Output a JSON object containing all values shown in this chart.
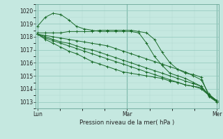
{
  "title": "Pression niveau de la mer( hPa )",
  "bg_color": "#c5e8e0",
  "grid_color_major": "#90c8bc",
  "grid_color_minor": "#b0d8d0",
  "line_color": "#1a6b2a",
  "border_color": "#5a9a8a",
  "ylim": [
    1012.5,
    1020.5
  ],
  "yticks": [
    1013,
    1014,
    1015,
    1016,
    1017,
    1018,
    1019,
    1020
  ],
  "xtick_labels": [
    "Lun",
    "Mar",
    "Mer"
  ],
  "xtick_pos": [
    0,
    1,
    2
  ],
  "series": [
    [
      1018.8,
      1019.5,
      1019.8,
      1019.7,
      1019.3,
      1018.8,
      1018.6,
      1018.5,
      1018.4,
      1018.4,
      1018.4,
      1018.4,
      1018.4,
      1018.3,
      1017.5,
      1016.5,
      1015.8,
      1015.2,
      1015.0,
      1014.8,
      1014.5,
      1014.2,
      1013.5,
      1013.1
    ],
    [
      1018.3,
      1018.3,
      1018.3,
      1018.3,
      1018.4,
      1018.4,
      1018.4,
      1018.4,
      1018.5,
      1018.5,
      1018.5,
      1018.5,
      1018.5,
      1018.4,
      1018.3,
      1017.8,
      1016.8,
      1016.0,
      1015.5,
      1015.2,
      1015.1,
      1014.9,
      1013.4,
      1013.0
    ],
    [
      1018.2,
      1018.1,
      1018.0,
      1017.9,
      1017.8,
      1017.7,
      1017.6,
      1017.5,
      1017.4,
      1017.3,
      1017.1,
      1016.9,
      1016.7,
      1016.5,
      1016.3,
      1016.1,
      1015.9,
      1015.7,
      1015.5,
      1015.3,
      1015.0,
      1014.7,
      1013.6,
      1013.1
    ],
    [
      1018.2,
      1018.0,
      1017.8,
      1017.6,
      1017.5,
      1017.3,
      1017.1,
      1017.0,
      1016.8,
      1016.6,
      1016.4,
      1016.2,
      1016.0,
      1015.8,
      1015.6,
      1015.4,
      1015.2,
      1015.0,
      1014.8,
      1014.6,
      1014.4,
      1014.2,
      1013.5,
      1013.1
    ],
    [
      1018.2,
      1017.9,
      1017.7,
      1017.5,
      1017.3,
      1017.1,
      1016.9,
      1016.7,
      1016.5,
      1016.3,
      1016.1,
      1015.9,
      1015.7,
      1015.5,
      1015.3,
      1015.1,
      1014.9,
      1014.7,
      1014.5,
      1014.3,
      1014.2,
      1014.0,
      1013.5,
      1013.1
    ],
    [
      1018.2,
      1017.8,
      1017.5,
      1017.2,
      1016.9,
      1016.7,
      1016.4,
      1016.1,
      1015.9,
      1015.7,
      1015.5,
      1015.3,
      1015.2,
      1015.1,
      1015.0,
      1014.9,
      1014.8,
      1014.6,
      1014.5,
      1014.3,
      1014.2,
      1014.1,
      1013.5,
      1013.0
    ]
  ]
}
